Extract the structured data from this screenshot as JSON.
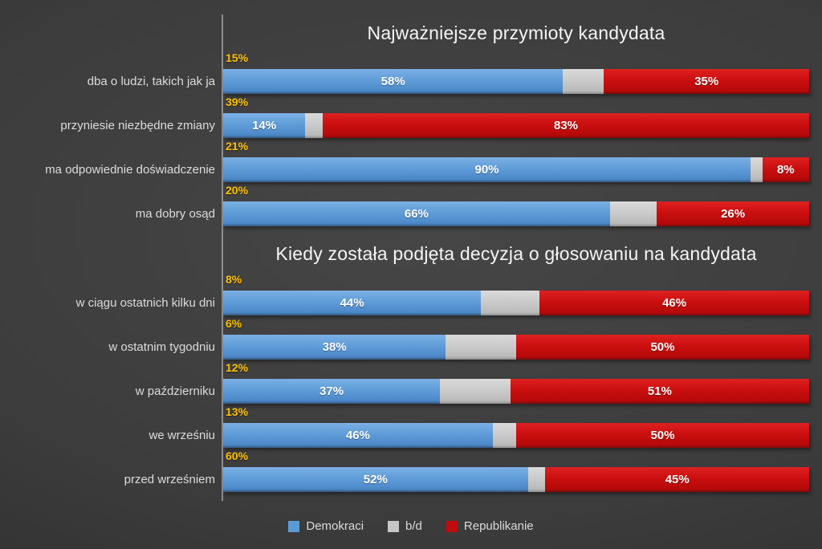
{
  "colors": {
    "background_dark": "#2b2b2b",
    "background_light": "#464646",
    "demokraci_blue": "#5B9BD5",
    "bd_gray": "#C6C6C6",
    "republikanie_red": "#C00C0C",
    "group_label_yellow": "#FFC000",
    "title_text": "#F5F5F5",
    "category_text": "#DCDCDC",
    "axis_line": "#9B9B9B"
  },
  "legend": {
    "items": [
      {
        "label": "Demokraci",
        "color": "#5B9BD5"
      },
      {
        "label": "b/d",
        "color": "#C6C6C6"
      },
      {
        "label": "Republikanie",
        "color": "#C00C0C"
      }
    ]
  },
  "chart_data": [
    {
      "type": "bar",
      "orientation": "horizontal",
      "stacked": true,
      "title": "Najważniejsze przymioty kandydata",
      "series_names": [
        "Demokraci",
        "b/d",
        "Republikanie"
      ],
      "unit": "%",
      "xlim": [
        0,
        100
      ],
      "value_labels_shown_for": [
        "Demokraci",
        "Republikanie"
      ],
      "rows": [
        {
          "category": "dba o ludzi, takich jak ja",
          "group_pct": 15,
          "demokraci": 58,
          "bd": 7,
          "republikanie": 35
        },
        {
          "category": "przyniesie niezbędne zmiany",
          "group_pct": 39,
          "demokraci": 14,
          "bd": 3,
          "republikanie": 83
        },
        {
          "category": "ma odpowiednie doświadczenie",
          "group_pct": 21,
          "demokraci": 90,
          "bd": 2,
          "republikanie": 8
        },
        {
          "category": "ma dobry osąd",
          "group_pct": 20,
          "demokraci": 66,
          "bd": 8,
          "republikanie": 26
        }
      ]
    },
    {
      "type": "bar",
      "orientation": "horizontal",
      "stacked": true,
      "title": "Kiedy została podjęta decyzja o głosowaniu na kandydata",
      "series_names": [
        "Demokraci",
        "b/d",
        "Republikanie"
      ],
      "unit": "%",
      "xlim": [
        0,
        100
      ],
      "value_labels_shown_for": [
        "Demokraci",
        "Republikanie"
      ],
      "rows": [
        {
          "category": "w ciągu ostatnich kilku dni",
          "group_pct": 8,
          "demokraci": 44,
          "bd": 10,
          "republikanie": 46
        },
        {
          "category": "w ostatnim tygodniu",
          "group_pct": 6,
          "demokraci": 38,
          "bd": 12,
          "republikanie": 50
        },
        {
          "category": "w październiku",
          "group_pct": 12,
          "demokraci": 37,
          "bd": 12,
          "republikanie": 51
        },
        {
          "category": "we wrześniu",
          "group_pct": 13,
          "demokraci": 46,
          "bd": 4,
          "republikanie": 50
        },
        {
          "category": "przed wrześniem",
          "group_pct": 60,
          "demokraci": 52,
          "bd": 3,
          "republikanie": 45
        }
      ]
    }
  ]
}
